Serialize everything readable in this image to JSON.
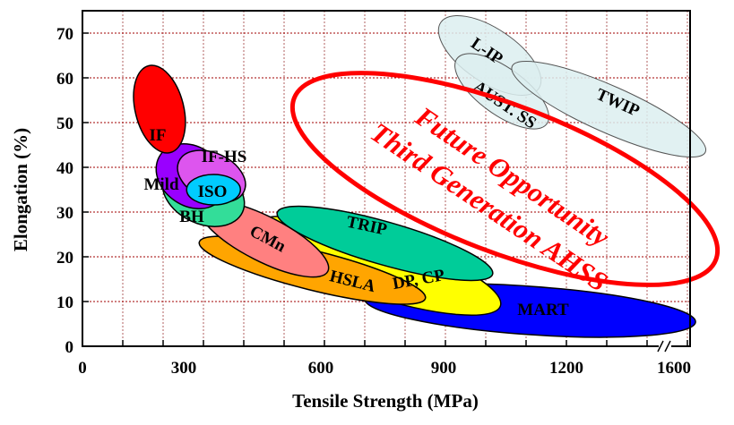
{
  "chart_data": {
    "type": "scatter",
    "title": "",
    "xlabel": "Tensile Strength (MPa)",
    "ylabel": "Elongation (%)",
    "xlim": [
      0,
      1600
    ],
    "ylim": [
      0,
      70
    ],
    "x_ticks": [
      "0",
      "300",
      "600",
      "900",
      "1200",
      "1600"
    ],
    "y_ticks": [
      "0",
      "10",
      "20",
      "30",
      "40",
      "50",
      "60",
      "70"
    ],
    "grid": true,
    "regions": [
      {
        "name": "MART",
        "cx": 1110,
        "cy": 8,
        "color": "#0000ff"
      },
      {
        "name": "DP, CP",
        "cx": 730,
        "cy": 18,
        "color": "#ffff00"
      },
      {
        "name": "HSLA",
        "cx": 570,
        "cy": 17,
        "color": "#ffa500"
      },
      {
        "name": "TRIP",
        "cx": 750,
        "cy": 23,
        "color": "#00cc99"
      },
      {
        "name": "CMn",
        "cx": 450,
        "cy": 24,
        "color": "#ff8080"
      },
      {
        "name": "BH",
        "cx": 300,
        "cy": 34,
        "color": "#33dd99"
      },
      {
        "name": "Mild",
        "cx": 270,
        "cy": 38,
        "color": "#9900ff"
      },
      {
        "name": "IF-HS",
        "cx": 320,
        "cy": 38,
        "color": "#dd55ee"
      },
      {
        "name": "ISO",
        "cx": 325,
        "cy": 35,
        "color": "#00ccff"
      },
      {
        "name": "IF",
        "cx": 191,
        "cy": 53,
        "color": "#ff0000"
      },
      {
        "name": "L-IP",
        "cx": 1010,
        "cy": 65,
        "color": "#dceef0"
      },
      {
        "name": "AUST. SS",
        "cx": 1040,
        "cy": 57,
        "color": "#dceef0"
      },
      {
        "name": "TWIP",
        "cx": 1305,
        "cy": 53,
        "color": "#dceef0"
      }
    ],
    "annotation": {
      "lines": [
        "Future Opportunity",
        "Third Generation AHSS"
      ],
      "color": "#ff0000",
      "cx": 1030,
      "cy": 35
    }
  }
}
